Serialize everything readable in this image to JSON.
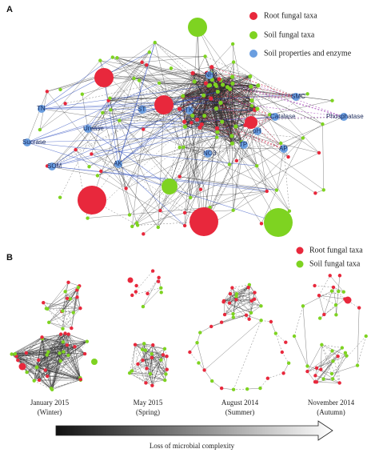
{
  "panel_a": {
    "label": "A",
    "legend": [
      "Root fungal taxa",
      "Soil fungal taxa",
      "Soil properties and enzyme"
    ],
    "nodes": [
      "NH4",
      "SMC",
      "Phosphatase",
      "Catalase",
      "pH",
      "TP",
      "AP",
      "NO3",
      "TK",
      "ST",
      "Urease",
      "TN",
      "Sucrase",
      "SOM",
      "AK"
    ]
  },
  "panel_b": {
    "label": "B",
    "legend": [
      "Root fungal taxa",
      "Soil fungal taxa"
    ],
    "networks": [
      {
        "date": "January 2015",
        "season": "(Winter)"
      },
      {
        "date": "May 2015",
        "season": "(Spring)"
      },
      {
        "date": "August 2014",
        "season": "(Summer)"
      },
      {
        "date": "November 2014",
        "season": "(Autumn)"
      }
    ]
  },
  "arrow_label": "Loss of microbial complexity"
}
